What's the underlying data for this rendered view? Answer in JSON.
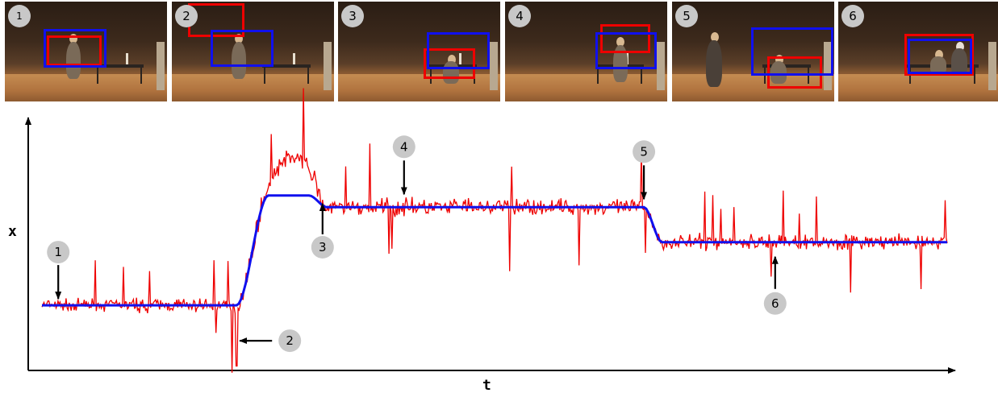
{
  "frames": [
    {
      "label": "1"
    },
    {
      "label": "2"
    },
    {
      "label": "3"
    },
    {
      "label": "4"
    },
    {
      "label": "5"
    },
    {
      "label": "6"
    }
  ],
  "colors": {
    "observed": "#ee0000",
    "smoothed": "#1010ee",
    "badge": "#c8c8c8",
    "axis": "#000000"
  },
  "chart_data": {
    "type": "line",
    "xlabel": "t",
    "ylabel": "x",
    "grid": false,
    "series": [
      {
        "key": "observed",
        "segments": [
          {
            "t0": 0.0,
            "t1": 0.21,
            "level": 0.21,
            "noise": 0.07
          },
          {
            "t0": 0.21,
            "t1": 0.245,
            "level": "rise",
            "noise": 0.12
          },
          {
            "t0": 0.245,
            "t1": 0.31,
            "level": "peak",
            "noise": 0.1
          },
          {
            "t0": 0.31,
            "t1": 0.66,
            "level": 0.62,
            "noise": 0.09
          },
          {
            "t0": 0.66,
            "t1": 0.68,
            "level": "drop",
            "noise": 0.08
          },
          {
            "t0": 0.68,
            "t1": 1.0,
            "level": 0.47,
            "noise": 0.08
          }
        ]
      },
      {
        "key": "smoothed",
        "steps": [
          {
            "t": 0.0,
            "x": 0.21
          },
          {
            "t": 0.215,
            "x": 0.21
          },
          {
            "t": 0.25,
            "x": 0.68
          },
          {
            "t": 0.295,
            "x": 0.68
          },
          {
            "t": 0.315,
            "x": 0.63
          },
          {
            "t": 0.665,
            "x": 0.63
          },
          {
            "t": 0.685,
            "x": 0.48
          },
          {
            "t": 1.0,
            "x": 0.48
          }
        ]
      }
    ],
    "annotations": [
      {
        "label": "1",
        "t": 0.018
      },
      {
        "label": "2",
        "t": 0.215
      },
      {
        "label": "3",
        "t": 0.31
      },
      {
        "label": "4",
        "t": 0.4
      },
      {
        "label": "5",
        "t": 0.665
      },
      {
        "label": "6",
        "t": 0.81
      }
    ]
  }
}
